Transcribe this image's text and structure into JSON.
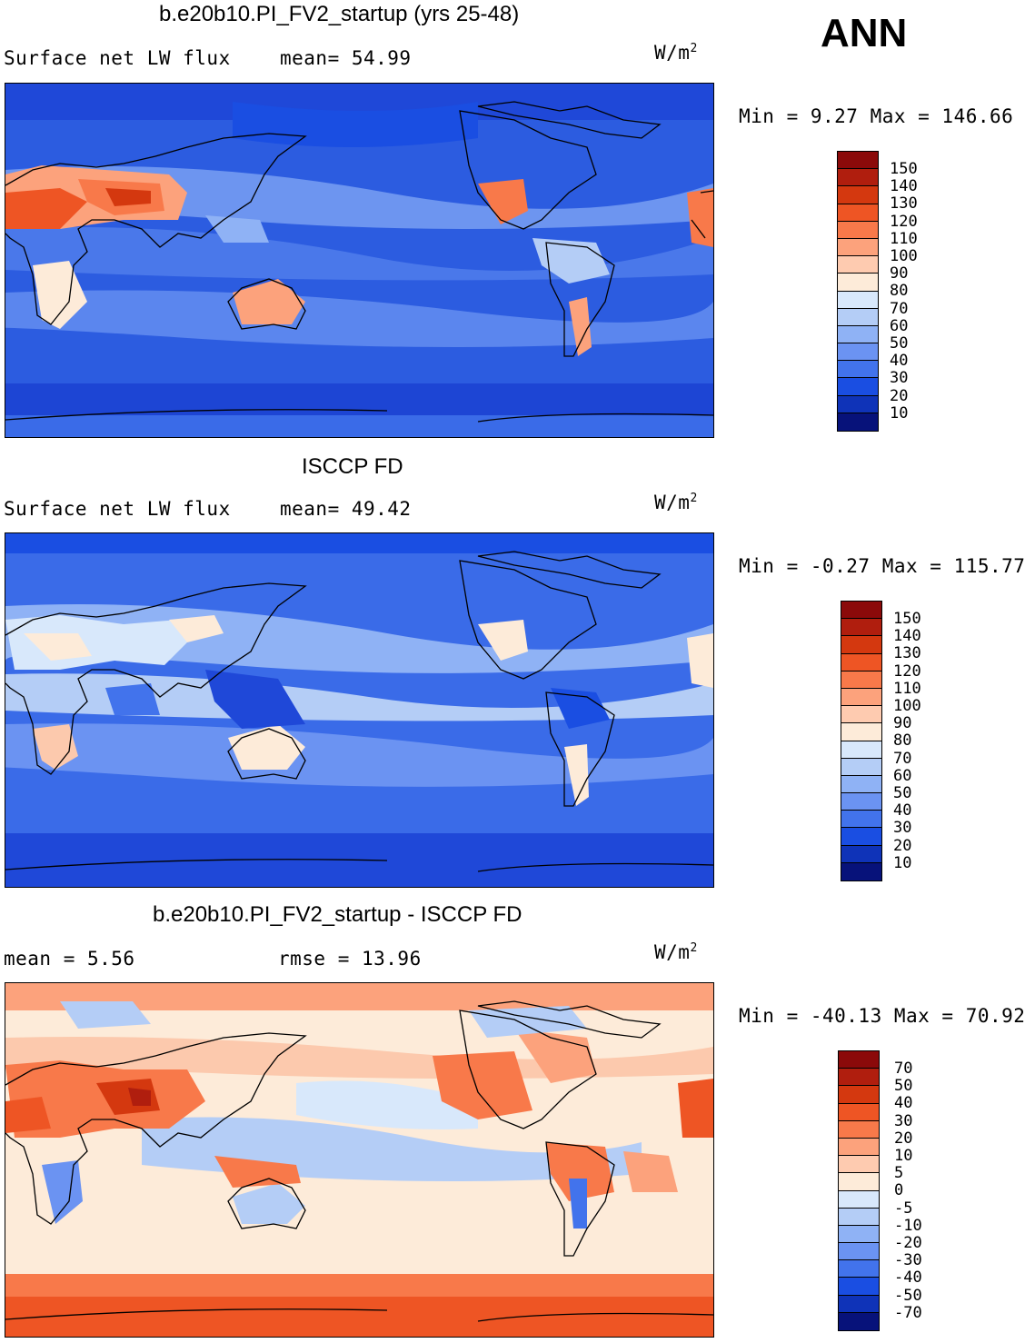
{
  "season_label": "ANN",
  "panels": [
    {
      "title": "b.e20b10.PI_FV2_startup (yrs 25-48)",
      "left_label": "Surface net LW flux",
      "mid_label": "mean=  54.99",
      "units": "W/m",
      "units_exp": "2",
      "minmax": "Min =   9.27 Max = 146.66",
      "colorbar": {
        "labels": [
          "150",
          "140",
          "130",
          "120",
          "110",
          "100",
          "90",
          "80",
          "70",
          "60",
          "50",
          "40",
          "30",
          "20",
          "10"
        ],
        "colors": [
          "#8b0a0a",
          "#b01e0e",
          "#d4380f",
          "#ee5524",
          "#f8794a",
          "#fca27c",
          "#fecbb0",
          "#fdebd9",
          "#d8e8fb",
          "#b4cdf6",
          "#8fb2f5",
          "#6b93f2",
          "#4273ec",
          "#1a4ee2",
          "#0f33b8",
          "#07127a"
        ]
      },
      "map_style": "model"
    },
    {
      "title": "ISCCP FD",
      "left_label": "Surface net LW flux",
      "mid_label": "mean=  49.42",
      "units": "W/m",
      "units_exp": "2",
      "minmax": "Min =  -0.27 Max = 115.77",
      "colorbar": {
        "labels": [
          "150",
          "140",
          "130",
          "120",
          "110",
          "100",
          "90",
          "80",
          "70",
          "60",
          "50",
          "40",
          "30",
          "20",
          "10"
        ],
        "colors": [
          "#8b0a0a",
          "#b01e0e",
          "#d4380f",
          "#ee5524",
          "#f8794a",
          "#fca27c",
          "#fecbb0",
          "#fdebd9",
          "#d8e8fb",
          "#b4cdf6",
          "#8fb2f5",
          "#6b93f2",
          "#4273ec",
          "#1a4ee2",
          "#0f33b8",
          "#07127a"
        ]
      },
      "map_style": "obs"
    },
    {
      "title": "b.e20b10.PI_FV2_startup - ISCCP FD",
      "left_label": "mean =   5.56",
      "mid_label": "rmse =  13.96",
      "units": "W/m",
      "units_exp": "2",
      "minmax": "Min = -40.13 Max =  70.92",
      "colorbar": {
        "labels": [
          "70",
          "50",
          "40",
          "30",
          "20",
          "10",
          "5",
          "0",
          "-5",
          "-10",
          "-20",
          "-30",
          "-40",
          "-50",
          "-70"
        ],
        "colors": [
          "#8b0a0a",
          "#b01e0e",
          "#d4380f",
          "#ee5524",
          "#f8794a",
          "#fca27c",
          "#fecbb0",
          "#fdebd9",
          "#d8e8fb",
          "#b4cdf6",
          "#8fb2f5",
          "#6b93f2",
          "#4273ec",
          "#1a4ee2",
          "#0f33b8",
          "#07127a"
        ]
      },
      "map_style": "diff"
    }
  ]
}
